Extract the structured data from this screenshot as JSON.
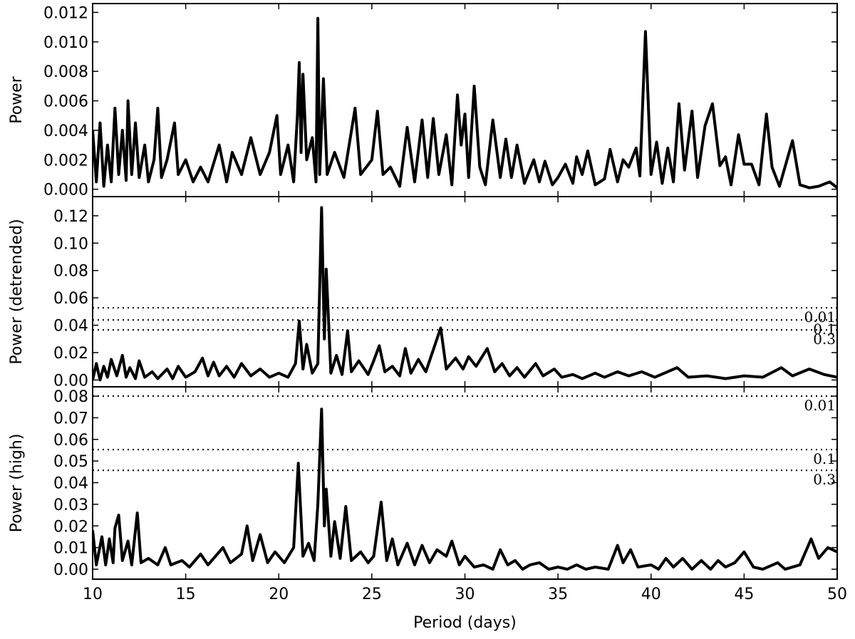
{
  "chart_data": [
    {
      "type": "line",
      "ylabel": "Power",
      "xlim": [
        10,
        50
      ],
      "xticks": [
        10,
        15,
        20,
        25,
        30,
        35,
        40,
        45,
        50
      ],
      "ylim": [
        -0.0005,
        0.0126
      ],
      "yticks": [
        {
          "value": 0,
          "label": "0.000"
        },
        {
          "value": 0.002,
          "label": "0.002"
        },
        {
          "value": 0.004,
          "label": "0.004"
        },
        {
          "value": 0.006,
          "label": "0.006"
        },
        {
          "value": 0.008,
          "label": "0.008"
        },
        {
          "value": 0.01,
          "label": "0.010"
        },
        {
          "value": 0.012,
          "label": "0.012"
        }
      ],
      "color": "#000000",
      "x": [
        10.0,
        10.2,
        10.4,
        10.6,
        10.8,
        11.0,
        11.2,
        11.4,
        11.6,
        11.8,
        11.9,
        12.1,
        12.3,
        12.5,
        12.8,
        13.0,
        13.3,
        13.5,
        13.7,
        14.0,
        14.4,
        14.6,
        15.0,
        15.4,
        15.8,
        16.2,
        16.8,
        17.2,
        17.5,
        18.0,
        18.5,
        19.0,
        19.5,
        19.9,
        20.1,
        20.5,
        20.8,
        21.0,
        21.1,
        21.2,
        21.3,
        21.5,
        21.8,
        22.0,
        22.1,
        22.2,
        22.4,
        22.6,
        23.0,
        23.5,
        24.1,
        24.4,
        25.0,
        25.3,
        25.6,
        26.0,
        26.5,
        26.9,
        27.3,
        27.7,
        28.0,
        28.3,
        28.6,
        29.0,
        29.3,
        29.6,
        29.8,
        30.0,
        30.2,
        30.5,
        30.8,
        31.1,
        31.5,
        31.9,
        32.2,
        32.5,
        32.8,
        33.2,
        33.7,
        34.0,
        34.3,
        34.7,
        35.0,
        35.4,
        35.8,
        36.0,
        36.3,
        36.6,
        37.0,
        37.5,
        37.8,
        38.2,
        38.5,
        38.8,
        39.2,
        39.4,
        39.7,
        40.0,
        40.3,
        40.6,
        40.9,
        41.2,
        41.5,
        41.8,
        42.2,
        42.5,
        42.9,
        43.3,
        43.7,
        44.0,
        44.3,
        44.7,
        45.0,
        45.4,
        45.8,
        46.2,
        46.5,
        46.9,
        47.6,
        48.0,
        48.5,
        49.0,
        49.6,
        50.0
      ],
      "values": [
        0.004,
        0.0005,
        0.0045,
        0.0002,
        0.003,
        0.0005,
        0.0055,
        0.001,
        0.004,
        0.0006,
        0.006,
        0.001,
        0.0045,
        0.0008,
        0.003,
        0.0005,
        0.002,
        0.0055,
        0.0008,
        0.002,
        0.0045,
        0.001,
        0.002,
        0.0005,
        0.0015,
        0.0005,
        0.003,
        0.0005,
        0.0025,
        0.001,
        0.0035,
        0.001,
        0.0025,
        0.005,
        0.001,
        0.003,
        0.0005,
        0.005,
        0.0086,
        0.0025,
        0.0078,
        0.002,
        0.0035,
        0.0005,
        0.0116,
        0.001,
        0.0075,
        0.001,
        0.0025,
        0.0008,
        0.0055,
        0.001,
        0.002,
        0.0053,
        0.001,
        0.0015,
        0.0002,
        0.0042,
        0.0005,
        0.0047,
        0.0008,
        0.0048,
        0.001,
        0.0037,
        0.0003,
        0.0064,
        0.003,
        0.0051,
        0.0008,
        0.007,
        0.0015,
        0.0003,
        0.0047,
        0.0008,
        0.0034,
        0.0008,
        0.003,
        0.0004,
        0.002,
        0.0005,
        0.0019,
        0.0003,
        0.0008,
        0.0017,
        0.0004,
        0.0022,
        0.001,
        0.0026,
        0.0003,
        0.0007,
        0.0027,
        0.0005,
        0.002,
        0.0015,
        0.0028,
        0.0009,
        0.0107,
        0.001,
        0.0032,
        0.0004,
        0.0028,
        0.0005,
        0.0058,
        0.0013,
        0.0053,
        0.0008,
        0.0043,
        0.0058,
        0.0016,
        0.0022,
        0.0003,
        0.0037,
        0.0017,
        0.0017,
        0.0003,
        0.0051,
        0.0015,
        0.0002,
        0.0033,
        0.0003,
        0.0001,
        0.0002,
        0.0005,
        0.0001
      ]
    },
    {
      "type": "line",
      "ylabel": "Power (detrended)",
      "xlim": [
        10,
        50
      ],
      "xticks": [
        10,
        15,
        20,
        25,
        30,
        35,
        40,
        45,
        50
      ],
      "ylim": [
        -0.005,
        0.134
      ],
      "yticks": [
        {
          "value": 0,
          "label": "0.00"
        },
        {
          "value": 0.02,
          "label": "0.02"
        },
        {
          "value": 0.04,
          "label": "0.04"
        },
        {
          "value": 0.06,
          "label": "0.06"
        },
        {
          "value": 0.08,
          "label": "0.08"
        },
        {
          "value": 0.1,
          "label": "0.10"
        },
        {
          "value": 0.12,
          "label": "0.12"
        }
      ],
      "color": "#000000",
      "significance_levels": [
        {
          "value": 0.0527,
          "label": "0.01"
        },
        {
          "value": 0.0439,
          "label": "0.1"
        },
        {
          "value": 0.0366,
          "label": "0.3"
        }
      ],
      "x": [
        10.0,
        10.2,
        10.4,
        10.6,
        10.8,
        11.0,
        11.3,
        11.6,
        11.8,
        12.0,
        12.3,
        12.5,
        12.8,
        13.2,
        13.5,
        14.0,
        14.3,
        14.6,
        15.0,
        15.5,
        15.9,
        16.2,
        16.5,
        16.8,
        17.2,
        17.6,
        18.0,
        18.5,
        19.0,
        19.5,
        20.0,
        20.5,
        20.9,
        21.1,
        21.3,
        21.5,
        21.8,
        22.1,
        22.3,
        22.45,
        22.55,
        22.8,
        23.1,
        23.4,
        23.7,
        23.9,
        24.3,
        24.8,
        25.1,
        25.4,
        25.7,
        26.1,
        26.5,
        26.8,
        27.1,
        27.5,
        27.9,
        28.3,
        28.7,
        29.0,
        29.5,
        29.9,
        30.2,
        30.6,
        31.2,
        31.6,
        32.0,
        32.4,
        32.8,
        33.2,
        33.8,
        34.2,
        34.8,
        35.2,
        35.8,
        36.3,
        37.0,
        37.5,
        38.2,
        38.8,
        39.5,
        40.2,
        41.4,
        42.0,
        43.0,
        44.0,
        45.0,
        46.0,
        47.0,
        47.6,
        48.5,
        49.3,
        50.0
      ],
      "values": [
        0.0,
        0.012,
        0.0,
        0.01,
        0.002,
        0.015,
        0.003,
        0.018,
        0.002,
        0.009,
        0.001,
        0.014,
        0.002,
        0.006,
        0.001,
        0.008,
        0.001,
        0.01,
        0.002,
        0.006,
        0.016,
        0.003,
        0.013,
        0.003,
        0.01,
        0.002,
        0.012,
        0.003,
        0.008,
        0.002,
        0.005,
        0.002,
        0.012,
        0.043,
        0.008,
        0.026,
        0.005,
        0.012,
        0.126,
        0.03,
        0.081,
        0.005,
        0.018,
        0.004,
        0.036,
        0.006,
        0.014,
        0.004,
        0.014,
        0.025,
        0.006,
        0.01,
        0.003,
        0.023,
        0.005,
        0.015,
        0.006,
        0.022,
        0.038,
        0.008,
        0.016,
        0.008,
        0.017,
        0.01,
        0.023,
        0.006,
        0.012,
        0.003,
        0.009,
        0.002,
        0.012,
        0.003,
        0.008,
        0.002,
        0.004,
        0.001,
        0.005,
        0.002,
        0.006,
        0.003,
        0.006,
        0.002,
        0.009,
        0.002,
        0.003,
        0.001,
        0.003,
        0.002,
        0.009,
        0.003,
        0.008,
        0.004,
        0.002
      ]
    },
    {
      "type": "line",
      "ylabel": "Power (high)",
      "xlabel": "Period (days)",
      "xlim": [
        10,
        50
      ],
      "xticks": [
        10,
        15,
        20,
        25,
        30,
        35,
        40,
        45,
        50
      ],
      "ylim": [
        -0.0046,
        0.0843
      ],
      "yticks": [
        {
          "value": 0,
          "label": "0.00"
        },
        {
          "value": 0.01,
          "label": "0.01"
        },
        {
          "value": 0.02,
          "label": "0.02"
        },
        {
          "value": 0.03,
          "label": "0.03"
        },
        {
          "value": 0.04,
          "label": "0.04"
        },
        {
          "value": 0.05,
          "label": "0.05"
        },
        {
          "value": 0.06,
          "label": "0.06"
        },
        {
          "value": 0.07,
          "label": "0.07"
        },
        {
          "value": 0.08,
          "label": "0.08"
        }
      ],
      "color": "#000000",
      "significance_levels": [
        {
          "value": 0.08,
          "label": "0.01"
        },
        {
          "value": 0.0553,
          "label": "0.1"
        },
        {
          "value": 0.0457,
          "label": "0.3"
        }
      ],
      "x": [
        10.0,
        10.2,
        10.5,
        10.7,
        10.9,
        11.1,
        11.2,
        11.4,
        11.6,
        11.9,
        12.1,
        12.4,
        12.6,
        13.0,
        13.5,
        13.9,
        14.2,
        14.8,
        15.2,
        15.8,
        16.2,
        16.6,
        17.0,
        17.4,
        18.0,
        18.3,
        18.6,
        19.0,
        19.4,
        19.8,
        20.3,
        20.8,
        21.05,
        21.3,
        21.6,
        21.9,
        22.1,
        22.3,
        22.45,
        22.55,
        22.8,
        23.0,
        23.3,
        23.6,
        23.9,
        24.4,
        24.8,
        25.1,
        25.5,
        25.8,
        26.1,
        26.4,
        26.9,
        27.3,
        27.7,
        28.1,
        28.5,
        29.0,
        29.3,
        29.7,
        30.0,
        30.5,
        31.0,
        31.5,
        31.9,
        32.3,
        32.7,
        33.1,
        33.5,
        34.0,
        34.5,
        35.0,
        35.5,
        36.0,
        36.5,
        37.0,
        37.7,
        38.2,
        38.5,
        38.9,
        39.3,
        40.0,
        40.4,
        40.8,
        41.2,
        41.7,
        42.2,
        42.7,
        43.2,
        43.6,
        44.0,
        44.5,
        45.0,
        45.5,
        46.0,
        46.8,
        47.2,
        48.0,
        48.6,
        49.0,
        49.5,
        50.0
      ],
      "values": [
        0.018,
        0.002,
        0.015,
        0.002,
        0.014,
        0.003,
        0.019,
        0.025,
        0.004,
        0.013,
        0.002,
        0.026,
        0.003,
        0.005,
        0.002,
        0.01,
        0.002,
        0.004,
        0.001,
        0.007,
        0.002,
        0.006,
        0.01,
        0.003,
        0.007,
        0.02,
        0.004,
        0.016,
        0.003,
        0.008,
        0.003,
        0.01,
        0.049,
        0.006,
        0.012,
        0.004,
        0.03,
        0.074,
        0.02,
        0.037,
        0.006,
        0.022,
        0.005,
        0.029,
        0.004,
        0.008,
        0.003,
        0.006,
        0.031,
        0.004,
        0.014,
        0.002,
        0.012,
        0.002,
        0.011,
        0.003,
        0.009,
        0.006,
        0.013,
        0.002,
        0.006,
        0.001,
        0.002,
        0.0,
        0.009,
        0.002,
        0.004,
        0.0,
        0.002,
        0.003,
        0.0,
        0.001,
        0.0,
        0.002,
        0.0,
        0.001,
        0.0,
        0.011,
        0.003,
        0.009,
        0.001,
        0.002,
        0.0,
        0.005,
        0.001,
        0.005,
        0.0,
        0.004,
        0.0,
        0.004,
        0.001,
        0.003,
        0.008,
        0.001,
        0.0,
        0.003,
        0.0,
        0.002,
        0.014,
        0.005,
        0.01,
        0.008
      ]
    }
  ]
}
